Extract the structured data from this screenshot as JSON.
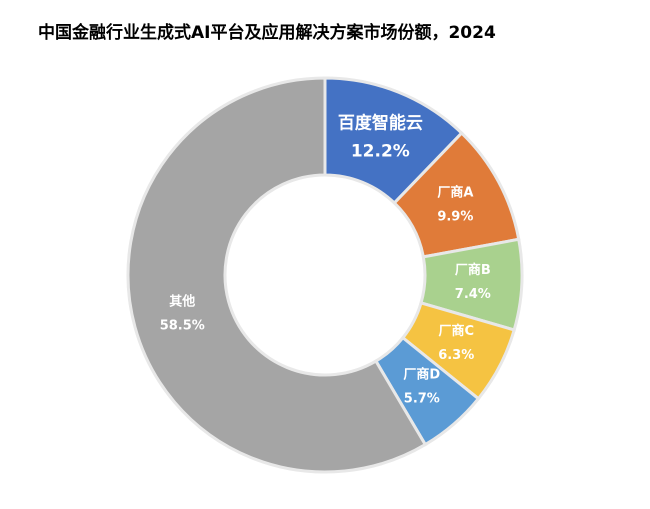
{
  "chart_data": {
    "type": "donut",
    "title": "中国金融行业生成式AI平台及应用解决方案市场份额，2024",
    "categories": [
      "百度智能云",
      "厂商A",
      "厂商B",
      "厂商C",
      "厂商D",
      "其他"
    ],
    "values": [
      12.2,
      9.9,
      7.4,
      6.3,
      5.7,
      58.5
    ],
    "value_labels": [
      "12.2%",
      "9.9%",
      "7.4%",
      "6.3%",
      "5.7%",
      "58.5%"
    ],
    "colors": [
      "#4472c4",
      "#e07b39",
      "#a9d18e",
      "#f5c342",
      "#5b9bd5",
      "#a5a5a5"
    ]
  }
}
